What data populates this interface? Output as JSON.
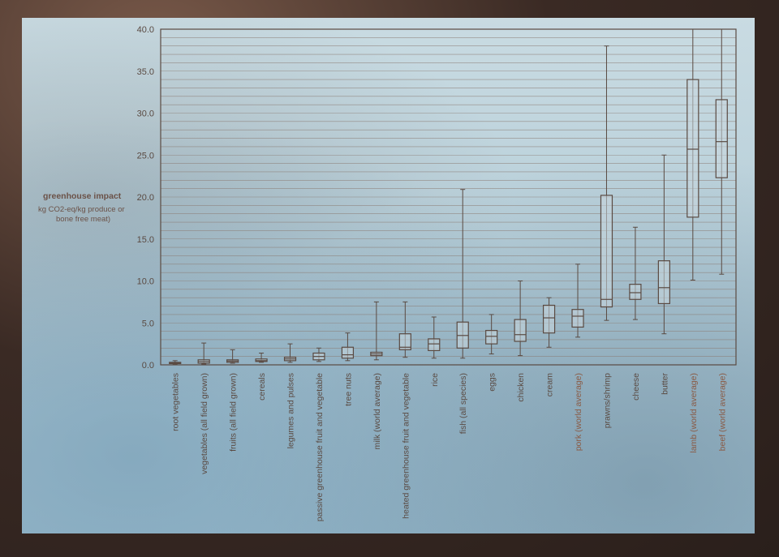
{
  "chart_data": {
    "type": "box",
    "ylabel_lines": [
      "greenhouse impact",
      "kg CO2-eq/kg produce or",
      "bone free meat)"
    ],
    "ylim": [
      0,
      40
    ],
    "y_ticks": [
      "0.0",
      "5.0",
      "10.0",
      "15.0",
      "20.0",
      "25.0",
      "30.0",
      "35.0",
      "40.0"
    ],
    "grid": true,
    "colors": {
      "box": "#5a4a42",
      "grid": "#8a7a72",
      "label_dark": "#5a4a42",
      "label_brown": "#8a5a44"
    },
    "categories": [
      {
        "label": "root vegetables",
        "min": 0.1,
        "q1": 0.15,
        "median": 0.2,
        "q3": 0.3,
        "max": 0.5,
        "brown": false
      },
      {
        "label": "vegetables (all field grown)",
        "min": 0.1,
        "q1": 0.2,
        "median": 0.4,
        "q3": 0.6,
        "max": 2.6,
        "brown": false
      },
      {
        "label": "fruits (all field grown)",
        "min": 0.2,
        "q1": 0.3,
        "median": 0.45,
        "q3": 0.6,
        "max": 1.8,
        "brown": false
      },
      {
        "label": "cereals",
        "min": 0.3,
        "q1": 0.4,
        "median": 0.5,
        "q3": 0.7,
        "max": 1.4,
        "brown": false
      },
      {
        "label": "legumes and pulses",
        "min": 0.3,
        "q1": 0.5,
        "median": 0.7,
        "q3": 0.9,
        "max": 2.5,
        "brown": false
      },
      {
        "label": "passive greenhouse fruit and vegetable",
        "min": 0.4,
        "q1": 0.6,
        "median": 1.0,
        "q3": 1.4,
        "max": 2.0,
        "brown": false
      },
      {
        "label": "tree nuts",
        "min": 0.5,
        "q1": 0.8,
        "median": 1.2,
        "q3": 2.1,
        "max": 3.8,
        "brown": false
      },
      {
        "label": "milk (world average)",
        "min": 0.6,
        "q1": 1.1,
        "median": 1.3,
        "q3": 1.5,
        "max": 7.5,
        "brown": false
      },
      {
        "label": "heated greenhouse fruit and vegetable",
        "min": 0.9,
        "q1": 1.8,
        "median": 2.1,
        "q3": 3.7,
        "max": 7.5,
        "brown": false
      },
      {
        "label": "rice",
        "min": 0.8,
        "q1": 1.7,
        "median": 2.5,
        "q3": 3.1,
        "max": 5.7,
        "brown": false
      },
      {
        "label": "fish (all species)",
        "min": 0.8,
        "q1": 2.0,
        "median": 3.5,
        "q3": 5.1,
        "max": 20.9,
        "brown": false
      },
      {
        "label": "eggs",
        "min": 1.3,
        "q1": 2.5,
        "median": 3.4,
        "q3": 4.1,
        "max": 6.0,
        "brown": false
      },
      {
        "label": "chicken",
        "min": 1.1,
        "q1": 2.8,
        "median": 3.6,
        "q3": 5.4,
        "max": 10.0,
        "brown": false
      },
      {
        "label": "cream",
        "min": 2.1,
        "q1": 3.8,
        "median": 5.6,
        "q3": 7.1,
        "max": 8.0,
        "brown": false
      },
      {
        "label": "pork (world average)",
        "min": 3.3,
        "q1": 4.5,
        "median": 5.8,
        "q3": 6.6,
        "max": 12.0,
        "brown": true
      },
      {
        "label": "prawns/shrimp",
        "min": 5.3,
        "q1": 6.9,
        "median": 7.8,
        "q3": 20.2,
        "max": 38.0,
        "brown": false
      },
      {
        "label": "cheese",
        "min": 5.4,
        "q1": 7.8,
        "median": 8.6,
        "q3": 9.6,
        "max": 16.4,
        "brown": false
      },
      {
        "label": "butter",
        "min": 3.7,
        "q1": 7.3,
        "median": 9.2,
        "q3": 12.4,
        "max": 25.0,
        "brown": false
      },
      {
        "label": "lamb (world average)",
        "min": 10.1,
        "q1": 17.6,
        "median": 25.7,
        "q3": 34.0,
        "max": 40.0,
        "brown": true
      },
      {
        "label": "beef (world average)",
        "min": 10.8,
        "q1": 22.3,
        "median": 26.6,
        "q3": 31.6,
        "max": 40.0,
        "brown": true
      }
    ]
  }
}
